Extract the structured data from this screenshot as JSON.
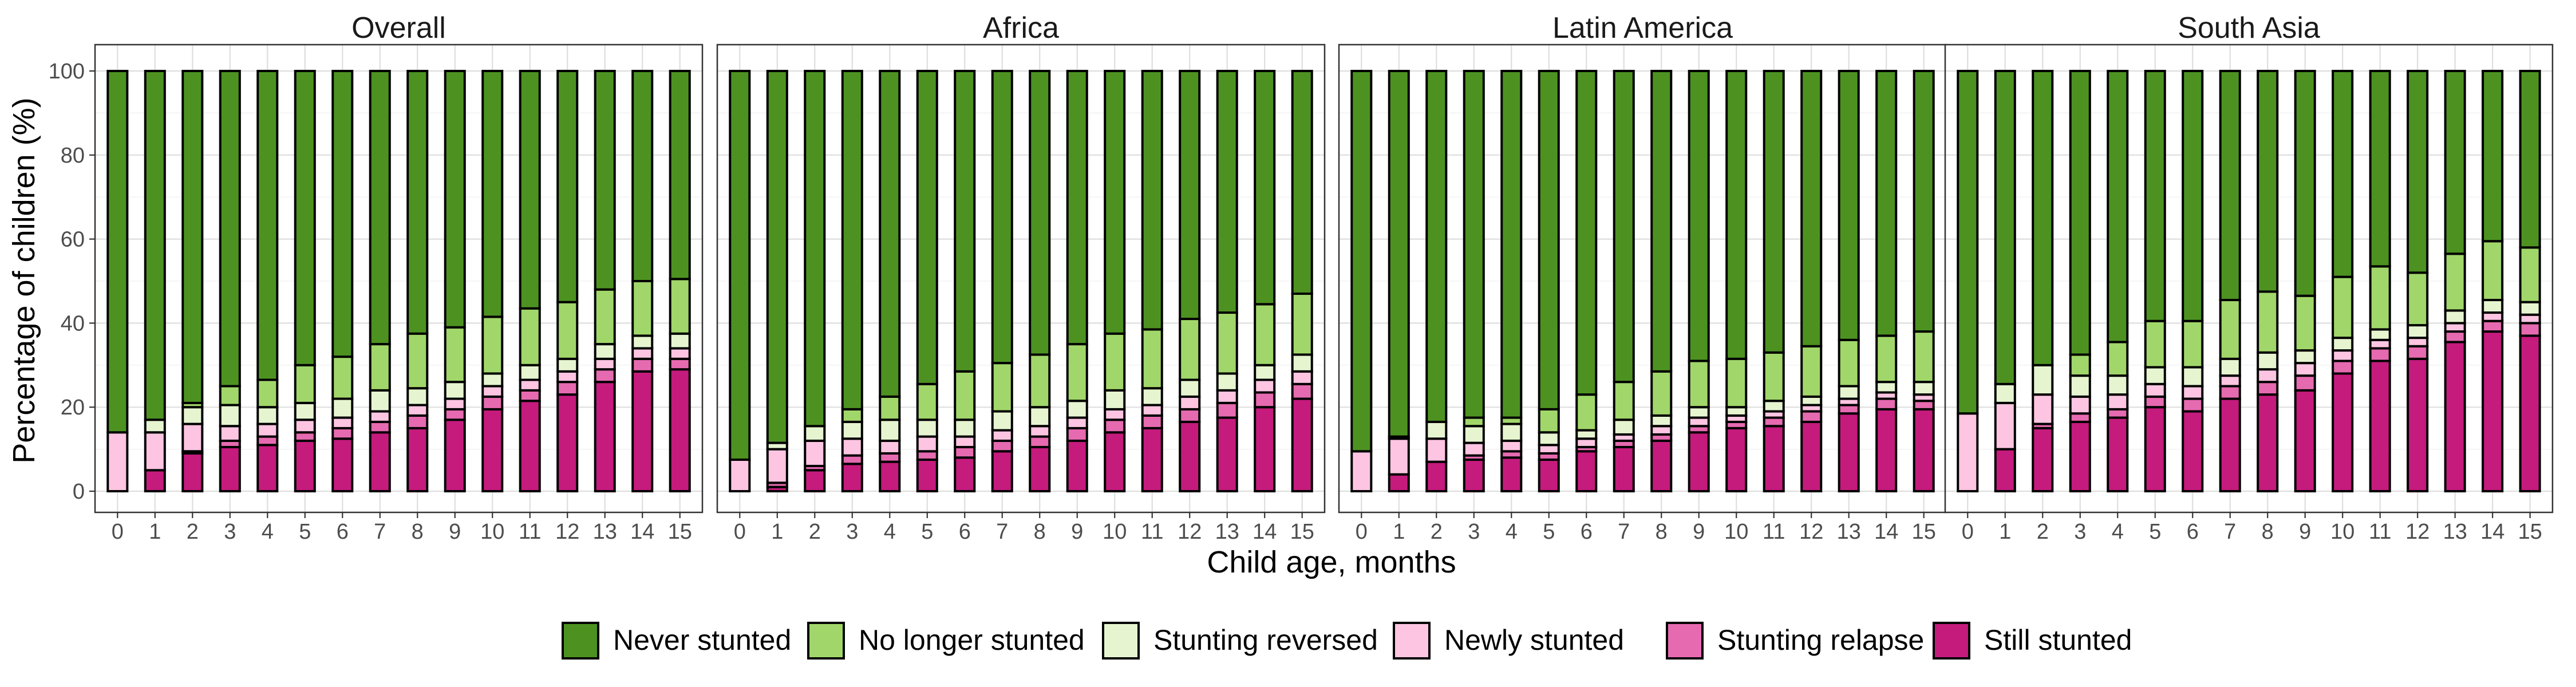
{
  "chart_data": {
    "type": "bar",
    "stacked": true,
    "xlabel": "Child age, months",
    "ylabel": "Percentage of children (%)",
    "ylim": [
      0,
      100
    ],
    "yticks": [
      0,
      20,
      40,
      60,
      80,
      100
    ],
    "categories": [
      "0",
      "1",
      "2",
      "3",
      "4",
      "5",
      "6",
      "7",
      "8",
      "9",
      "10",
      "11",
      "12",
      "13",
      "14",
      "15"
    ],
    "grid": true,
    "legend_position": "bottom",
    "series_order_bottom_to_top": [
      "Still stunted",
      "Stunting relapse",
      "Newly stunted",
      "Stunting reversed",
      "No longer stunted",
      "Never stunted"
    ],
    "legend": [
      {
        "name": "Never stunted",
        "color": "#4d9221"
      },
      {
        "name": "No longer stunted",
        "color": "#a1d76a"
      },
      {
        "name": "Stunting reversed",
        "color": "#e6f5d0"
      },
      {
        "name": "Newly stunted",
        "color": "#fdc5e2"
      },
      {
        "name": "Stunting relapse",
        "color": "#e66ab0"
      },
      {
        "name": "Still stunted",
        "color": "#c51b7d"
      }
    ],
    "panels": [
      {
        "title": "Overall",
        "series": [
          {
            "name": "Still stunted",
            "values": [
              0,
              5,
              9,
              10.5,
              11,
              12,
              12.5,
              14,
              15,
              17,
              19.5,
              21.5,
              23,
              26,
              28.5,
              29
            ]
          },
          {
            "name": "Stunting relapse",
            "values": [
              0,
              0,
              0.5,
              1.5,
              2,
              2,
              2.5,
              2.5,
              3,
              2.5,
              3,
              2.5,
              3,
              3,
              3,
              2.5
            ]
          },
          {
            "name": "Newly stunted",
            "values": [
              14,
              9,
              6.5,
              3.5,
              3,
              3,
              2.5,
              2.5,
              2.5,
              2.5,
              2.5,
              2.5,
              2.5,
              2.5,
              2.5,
              2.5
            ]
          },
          {
            "name": "Stunting reversed",
            "values": [
              0,
              3,
              4,
              5,
              4,
              4,
              4.5,
              5,
              4,
              4,
              3,
              3.5,
              3,
              3.5,
              3,
              3.5
            ]
          },
          {
            "name": "No longer stunted",
            "values": [
              0,
              0,
              1,
              4.5,
              6.5,
              9,
              10,
              11,
              13,
              13,
              13.5,
              13.5,
              13.5,
              13,
              13,
              13
            ]
          },
          {
            "name": "Never stunted",
            "values": [
              86,
              83,
              79,
              75,
              73.5,
              70,
              68,
              65,
              62.5,
              61,
              58.5,
              56.5,
              55,
              52,
              50,
              49.5
            ]
          }
        ]
      },
      {
        "title": "Africa",
        "series": [
          {
            "name": "Still stunted",
            "values": [
              0,
              1,
              5,
              6.5,
              7,
              7.5,
              8,
              9.5,
              10.5,
              12,
              14,
              15,
              16.5,
              17.5,
              20,
              22
            ]
          },
          {
            "name": "Stunting relapse",
            "values": [
              0,
              1,
              1,
              2,
              2,
              2,
              2.5,
              2.5,
              2.5,
              3,
              3,
              3,
              3,
              3.5,
              3.5,
              3.5
            ]
          },
          {
            "name": "Newly stunted",
            "values": [
              7.5,
              8,
              6,
              4,
              3,
              3.5,
              2.5,
              2.5,
              2.5,
              2.5,
              2.5,
              2.5,
              3,
              3,
              3,
              3
            ]
          },
          {
            "name": "Stunting reversed",
            "values": [
              0,
              1.5,
              3.5,
              4,
              5,
              4,
              4,
              4.5,
              4.5,
              4,
              4.5,
              4,
              4,
              4,
              3.5,
              4
            ]
          },
          {
            "name": "No longer stunted",
            "values": [
              0,
              0,
              0,
              3,
              5.5,
              8.5,
              11.5,
              11.5,
              12.5,
              13.5,
              13.5,
              14,
              14.5,
              14.5,
              14.5,
              14.5
            ]
          },
          {
            "name": "Never stunted",
            "values": [
              92.5,
              88.5,
              84.5,
              80.5,
              77.5,
              74.5,
              71.5,
              69.5,
              67.5,
              65,
              62.5,
              61.5,
              59,
              57.5,
              55.5,
              53
            ]
          }
        ]
      },
      {
        "title": "Latin America",
        "series": [
          {
            "name": "Still stunted",
            "values": [
              0,
              4,
              7,
              7.5,
              8,
              7.5,
              9.5,
              10.5,
              12,
              14,
              15,
              15.5,
              16.5,
              18.5,
              19.5,
              19.5
            ]
          },
          {
            "name": "Stunting relapse",
            "values": [
              0,
              0,
              0,
              1,
              1.5,
              1.5,
              1,
              1.5,
              1.5,
              1.5,
              1.5,
              2,
              2.5,
              2,
              2.5,
              2
            ]
          },
          {
            "name": "Newly stunted",
            "values": [
              9.5,
              8.5,
              5.5,
              3,
              2.5,
              2,
              2,
              1.5,
              2,
              2,
              1.5,
              1.5,
              1.5,
              1.5,
              1.5,
              1.5
            ]
          },
          {
            "name": "Stunting reversed",
            "values": [
              0,
              0.5,
              4,
              4,
              4,
              3,
              2,
              3.5,
              2.5,
              2.5,
              2,
              2.5,
              2,
              3,
              2.5,
              3
            ]
          },
          {
            "name": "No longer stunted",
            "values": [
              0,
              0,
              0,
              2,
              1.5,
              5.5,
              8.5,
              9,
              10.5,
              11,
              11.5,
              11.5,
              12,
              11,
              11,
              12
            ]
          },
          {
            "name": "Never stunted",
            "values": [
              90.5,
              87,
              83.5,
              82.5,
              82.5,
              80.5,
              77,
              74,
              71.5,
              69,
              68.5,
              67,
              65.5,
              64,
              63,
              62
            ]
          }
        ]
      },
      {
        "title": "South Asia",
        "series": [
          {
            "name": "Still stunted",
            "values": [
              0,
              10,
              15,
              16.5,
              17.5,
              20,
              19,
              22,
              23,
              24,
              28,
              31,
              31.5,
              35.5,
              38,
              37
            ]
          },
          {
            "name": "Stunting relapse",
            "values": [
              0,
              0,
              1,
              2,
              2,
              2.5,
              3,
              3,
              3,
              3.5,
              3,
              3,
              3,
              2.5,
              2.5,
              3
            ]
          },
          {
            "name": "Newly stunted",
            "values": [
              18.5,
              11,
              7,
              4,
              3.5,
              3,
              3,
              2.5,
              3,
              3,
              2.5,
              2,
              2,
              2,
              2,
              2
            ]
          },
          {
            "name": "Stunting reversed",
            "values": [
              0,
              4.5,
              7,
              5,
              4.5,
              4,
              4.5,
              4,
              4,
              3,
              3,
              2.5,
              3,
              3,
              3,
              3
            ]
          },
          {
            "name": "No longer stunted",
            "values": [
              0,
              0,
              0,
              5,
              8,
              11,
              11,
              14,
              14.5,
              13,
              14.5,
              15,
              12.5,
              13.5,
              14,
              13
            ]
          },
          {
            "name": "Never stunted",
            "values": [
              81.5,
              74.5,
              70,
              67.5,
              64.5,
              59.5,
              59.5,
              54.5,
              52.5,
              53.5,
              49,
              46.5,
              48,
              43.5,
              40.5,
              42
            ]
          }
        ]
      }
    ]
  }
}
